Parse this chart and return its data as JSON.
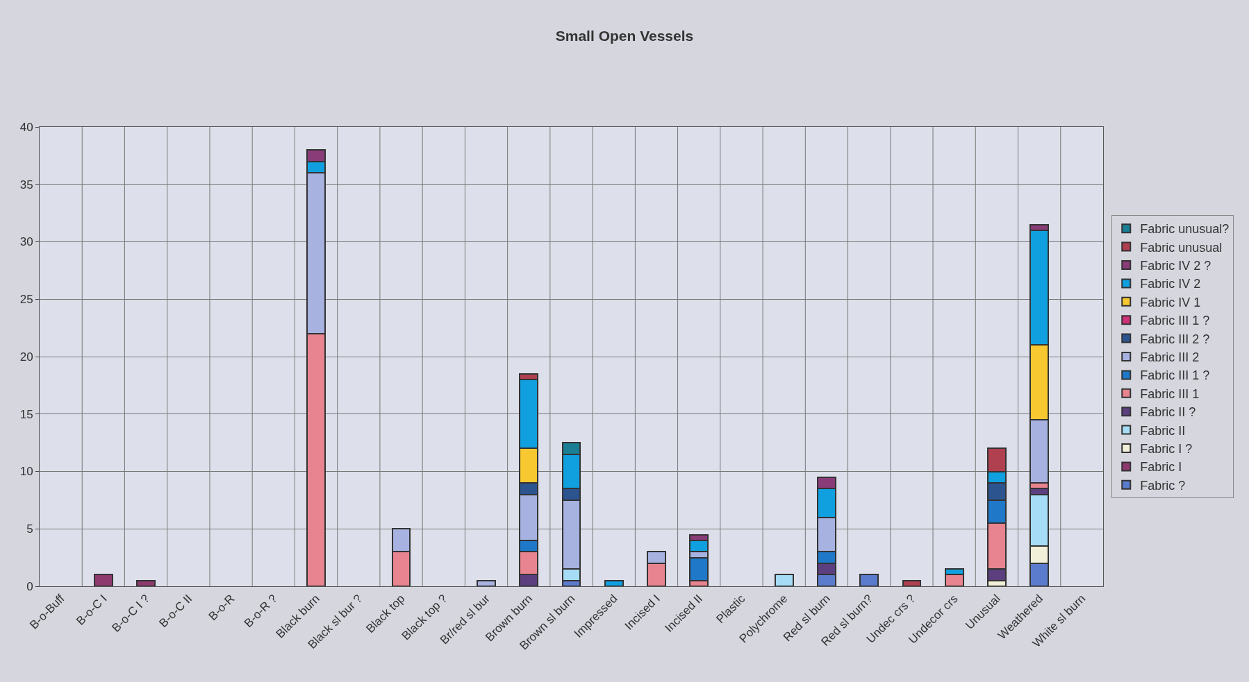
{
  "chart_data": {
    "type": "bar",
    "stacked": true,
    "title": "Small Open Vessels",
    "categories": [
      "B-o-Buff",
      "B-o-C I",
      "B-o-C I ?",
      "B-o-C II",
      "B-o-R",
      "B-o-R ?",
      "Black burn",
      "Black sl bur ?",
      "Black top",
      "Black top ?",
      "Br/red sl bur",
      "Brown burn",
      "Brown sl burn",
      "Impressed",
      "Incised I",
      "Incised II",
      "Plastic",
      "Polychrome",
      "Red sl burn",
      "Red sl burn?",
      "Undec crs ?",
      "Undecor crs",
      "Unusual",
      "Weathered",
      "White sl burn"
    ],
    "ylim": [
      0,
      40
    ],
    "yticks": [
      0,
      5,
      10,
      15,
      20,
      25,
      30,
      35,
      40
    ],
    "grid": true,
    "legend": "right",
    "series": [
      {
        "name": "Fabric ?",
        "color": "#5b7ccc",
        "values": [
          null,
          null,
          null,
          null,
          null,
          null,
          null,
          null,
          null,
          null,
          null,
          null,
          0.5,
          null,
          null,
          null,
          null,
          null,
          1,
          1,
          null,
          null,
          null,
          2,
          null
        ]
      },
      {
        "name": "Fabric I",
        "color": "#8e3a6e",
        "values": [
          null,
          1,
          0.5,
          null,
          null,
          null,
          null,
          null,
          null,
          null,
          null,
          null,
          null,
          null,
          null,
          null,
          null,
          null,
          null,
          null,
          null,
          null,
          null,
          null,
          null
        ]
      },
      {
        "name": "Fabric I ?",
        "color": "#f2f0d8",
        "values": [
          null,
          null,
          null,
          null,
          null,
          null,
          null,
          null,
          null,
          null,
          null,
          null,
          null,
          null,
          null,
          null,
          null,
          null,
          null,
          null,
          null,
          null,
          0.5,
          1.5,
          null
        ]
      },
      {
        "name": "Fabric II",
        "color": "#a6dcf5",
        "values": [
          null,
          null,
          null,
          null,
          null,
          null,
          null,
          null,
          null,
          null,
          null,
          null,
          1,
          null,
          null,
          null,
          null,
          1,
          null,
          null,
          null,
          null,
          null,
          4.5,
          null
        ]
      },
      {
        "name": "Fabric II ?",
        "color": "#5c3f7e",
        "values": [
          null,
          null,
          null,
          null,
          null,
          null,
          null,
          null,
          null,
          null,
          null,
          1,
          null,
          null,
          null,
          null,
          null,
          null,
          1,
          null,
          null,
          null,
          1,
          0.5,
          null
        ]
      },
      {
        "name": "Fabric III 1",
        "color": "#e8848f",
        "values": [
          null,
          null,
          null,
          null,
          null,
          null,
          22,
          null,
          3,
          null,
          null,
          2,
          null,
          null,
          2,
          0.5,
          null,
          null,
          null,
          null,
          null,
          1,
          4,
          0.5,
          null
        ]
      },
      {
        "name": "Fabric III 1 ?",
        "color": "#1f78c8",
        "values": [
          null,
          null,
          null,
          null,
          null,
          null,
          null,
          null,
          null,
          null,
          null,
          1,
          null,
          null,
          null,
          2,
          null,
          null,
          1,
          null,
          null,
          null,
          2,
          null,
          null
        ]
      },
      {
        "name": "Fabric III 2",
        "color": "#a7b2e0",
        "values": [
          null,
          null,
          null,
          null,
          null,
          null,
          14,
          null,
          2,
          null,
          0.5,
          4,
          6,
          null,
          1,
          0.5,
          null,
          null,
          3,
          null,
          null,
          null,
          null,
          5.5,
          null
        ]
      },
      {
        "name": "Fabric III 2 ?",
        "color": "#2c5590",
        "values": [
          null,
          null,
          null,
          null,
          null,
          null,
          null,
          null,
          null,
          null,
          null,
          1,
          1,
          null,
          null,
          null,
          null,
          null,
          null,
          null,
          null,
          null,
          1.5,
          null,
          null
        ]
      },
      {
        "name": "Fabric III 1 ?",
        "color": "#d0307a",
        "values": [
          null,
          null,
          null,
          null,
          null,
          null,
          null,
          null,
          null,
          null,
          null,
          null,
          null,
          null,
          null,
          null,
          null,
          null,
          null,
          null,
          null,
          null,
          null,
          null,
          null
        ]
      },
      {
        "name": "Fabric IV 1",
        "color": "#f7c830",
        "values": [
          null,
          null,
          null,
          null,
          null,
          null,
          null,
          null,
          null,
          null,
          null,
          3,
          null,
          null,
          null,
          null,
          null,
          null,
          null,
          null,
          null,
          null,
          null,
          6.5,
          null
        ]
      },
      {
        "name": "Fabric IV 2",
        "color": "#10a0e0",
        "values": [
          null,
          null,
          null,
          null,
          null,
          null,
          1,
          null,
          null,
          null,
          null,
          6,
          3,
          0.5,
          null,
          1,
          null,
          null,
          2.5,
          null,
          null,
          0.5,
          1,
          10,
          null
        ]
      },
      {
        "name": "Fabric IV 2 ?",
        "color": "#8a3c78",
        "values": [
          null,
          null,
          null,
          null,
          null,
          null,
          1,
          null,
          null,
          null,
          null,
          null,
          null,
          null,
          null,
          0.5,
          null,
          null,
          1,
          null,
          null,
          null,
          null,
          0.5,
          null
        ]
      },
      {
        "name": "Fabric unusual",
        "color": "#b04050",
        "values": [
          null,
          null,
          null,
          null,
          null,
          null,
          null,
          null,
          null,
          null,
          null,
          0.5,
          null,
          null,
          null,
          null,
          null,
          null,
          null,
          null,
          0.5,
          null,
          2,
          null,
          null
        ]
      },
      {
        "name": "Fabric unusual?",
        "color": "#1a7f95",
        "values": [
          null,
          null,
          null,
          null,
          null,
          null,
          null,
          null,
          null,
          null,
          null,
          null,
          1,
          null,
          null,
          null,
          null,
          null,
          null,
          null,
          null,
          null,
          null,
          null,
          null
        ]
      }
    ]
  }
}
